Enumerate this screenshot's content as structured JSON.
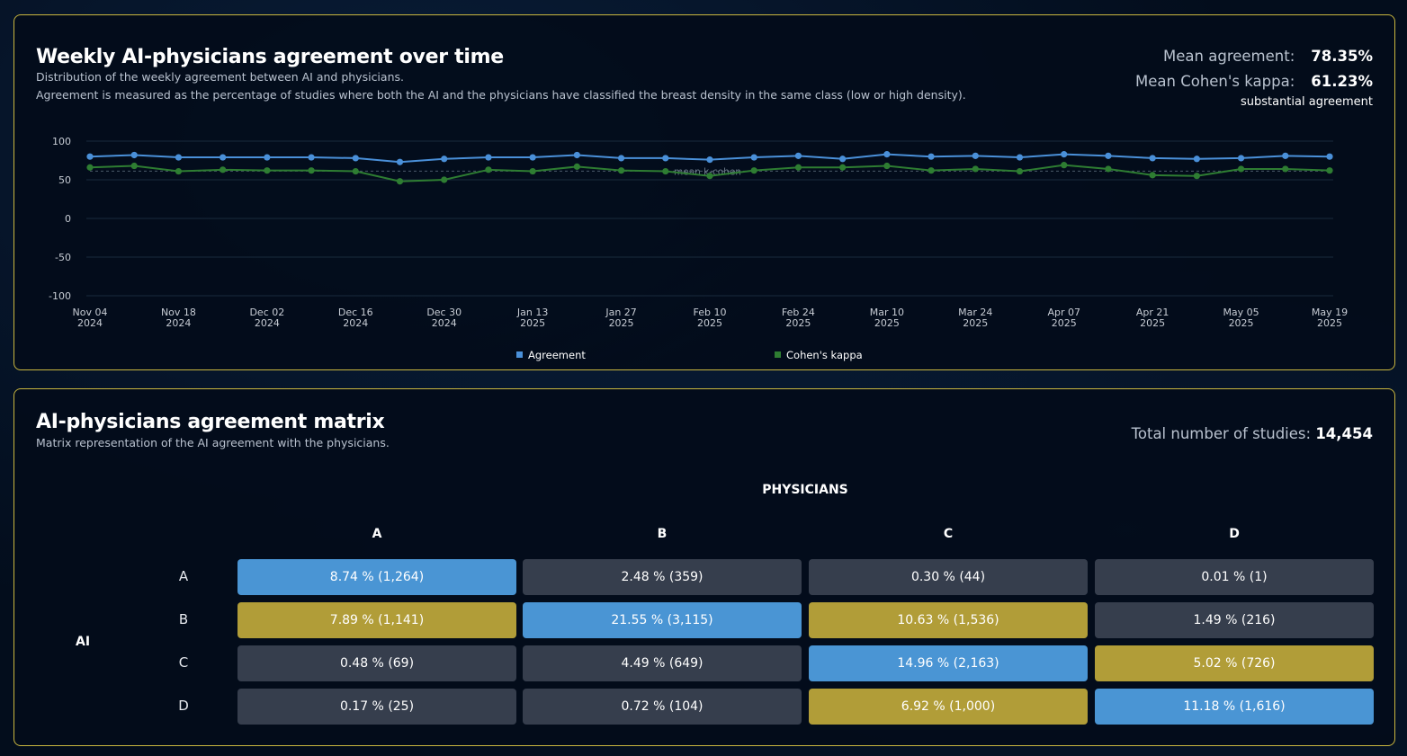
{
  "weekly": {
    "title": "Weekly AI-physicians agreement over time",
    "subtitle1": "Distribution of the weekly agreement between AI and physicians.",
    "subtitle2": "Agreement is measured as the percentage of studies where both the AI and the physicians have classified the breast density in the same class (low or high density).",
    "mean_agreement_label": "Mean agreement:",
    "mean_agreement_value": "78.35%",
    "mean_kappa_label": "Mean Cohen's kappa:",
    "mean_kappa_value": "61.23%",
    "kappa_description": "substantial agreement"
  },
  "chart_data": {
    "type": "line",
    "title": "Weekly AI-physicians agreement over time",
    "ylim": [
      -100,
      100
    ],
    "yticks": [
      100,
      50,
      0,
      -50,
      -100
    ],
    "grid": true,
    "x": [
      "Nov 04 2024",
      "Nov 11 2024",
      "Nov 18 2024",
      "Nov 25 2024",
      "Dec 02 2024",
      "Dec 09 2024",
      "Dec 16 2024",
      "Dec 23 2024",
      "Dec 30 2024",
      "Jan 06 2025",
      "Jan 13 2025",
      "Jan 20 2025",
      "Jan 27 2025",
      "Feb 03 2025",
      "Feb 10 2025",
      "Feb 17 2025",
      "Feb 24 2025",
      "Mar 03 2025",
      "Mar 10 2025",
      "Mar 17 2025",
      "Mar 24 2025",
      "Mar 31 2025",
      "Apr 07 2025",
      "Apr 14 2025",
      "Apr 21 2025",
      "Apr 28 2025",
      "May 05 2025",
      "May 12 2025",
      "May 19 2025"
    ],
    "xtick_labels": [
      [
        "Nov 04",
        "2024"
      ],
      [
        "Nov 18",
        "2024"
      ],
      [
        "Dec 02",
        "2024"
      ],
      [
        "Dec 16",
        "2024"
      ],
      [
        "Dec 30",
        "2024"
      ],
      [
        "Jan 13",
        "2025"
      ],
      [
        "Jan 27",
        "2025"
      ],
      [
        "Feb 10",
        "2025"
      ],
      [
        "Feb 24",
        "2025"
      ],
      [
        "Mar 10",
        "2025"
      ],
      [
        "Mar 24",
        "2025"
      ],
      [
        "Apr 07",
        "2025"
      ],
      [
        "Apr 21",
        "2025"
      ],
      [
        "May 05",
        "2025"
      ],
      [
        "May 19",
        "2025"
      ]
    ],
    "series": [
      {
        "name": "Agreement",
        "color": "#4a90d9",
        "values": [
          80,
          82,
          79,
          79,
          79,
          79,
          78,
          73,
          77,
          79,
          79,
          82,
          78,
          78,
          76,
          79,
          81,
          77,
          83,
          80,
          81,
          79,
          83,
          81,
          78,
          77,
          78,
          81,
          80
        ]
      },
      {
        "name": "Cohen's kappa",
        "color": "#2e7d32",
        "values": [
          66,
          68,
          61,
          63,
          62,
          62,
          61,
          48,
          50,
          63,
          61,
          67,
          62,
          61,
          55,
          62,
          66,
          66,
          68,
          62,
          64,
          61,
          69,
          64,
          56,
          55,
          64,
          64,
          62
        ]
      }
    ],
    "reference_line": {
      "label": "mean k-cohen",
      "value": 61.23
    }
  },
  "matrix": {
    "title": "AI-physicians agreement matrix",
    "subtitle": "Matrix representation of the AI agreement with the physicians.",
    "total_label": "Total number of studies:",
    "total_value": "14,454",
    "col_axis_label": "PHYSICIANS",
    "row_axis_label": "AI",
    "columns": [
      "A",
      "B",
      "C",
      "D"
    ],
    "rows": [
      "A",
      "B",
      "C",
      "D"
    ],
    "colors": {
      "blue": "#4a95d4",
      "gold": "#b19d38",
      "gray": "#363e4d"
    },
    "cells": [
      [
        {
          "text": "8.74 % (1,264)",
          "tone": "blue"
        },
        {
          "text": "2.48 % (359)",
          "tone": "gray"
        },
        {
          "text": "0.30 % (44)",
          "tone": "gray"
        },
        {
          "text": "0.01 % (1)",
          "tone": "gray"
        }
      ],
      [
        {
          "text": "7.89 % (1,141)",
          "tone": "gold"
        },
        {
          "text": "21.55 % (3,115)",
          "tone": "blue"
        },
        {
          "text": "10.63 % (1,536)",
          "tone": "gold"
        },
        {
          "text": "1.49 % (216)",
          "tone": "gray"
        }
      ],
      [
        {
          "text": "0.48 % (69)",
          "tone": "gray"
        },
        {
          "text": "4.49 % (649)",
          "tone": "gray"
        },
        {
          "text": "14.96 % (2,163)",
          "tone": "blue"
        },
        {
          "text": "5.02 % (726)",
          "tone": "gold"
        }
      ],
      [
        {
          "text": "0.17 % (25)",
          "tone": "gray"
        },
        {
          "text": "0.72 % (104)",
          "tone": "gray"
        },
        {
          "text": "6.92 % (1,000)",
          "tone": "gold"
        },
        {
          "text": "11.18 % (1,616)",
          "tone": "blue"
        }
      ]
    ]
  }
}
